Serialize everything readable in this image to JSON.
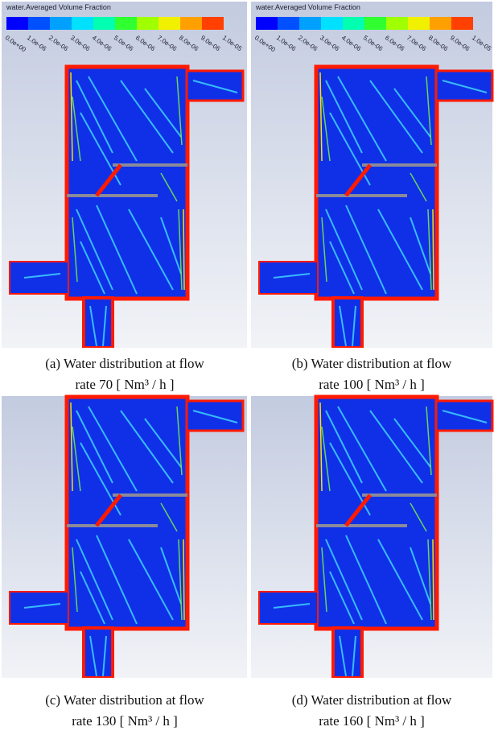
{
  "legend": {
    "title": "water.Averaged Volume Fraction",
    "ticks": [
      "0.0e+00",
      "1.0e-06",
      "2.0e-06",
      "3.0e-06",
      "4.0e-06",
      "5.0e-06",
      "6.0e-06",
      "7.0e-06",
      "8.0e-06",
      "9.0e-06",
      "1.0e-05"
    ]
  },
  "panels": [
    {
      "caption": [
        "(a) Water distribution at flow",
        "rate 70 [ Nm³ / h ]"
      ]
    },
    {
      "caption": [
        "(b) Water distribution at flow",
        "rate 100 [ Nm³ / h ]"
      ]
    },
    {
      "caption": [
        "(c) Water distribution at flow",
        "rate 130 [ Nm³ / h ]"
      ]
    },
    {
      "caption": [
        "(d) Water distribution at flow",
        "rate 160 [ Nm³ / h ]"
      ]
    }
  ]
}
